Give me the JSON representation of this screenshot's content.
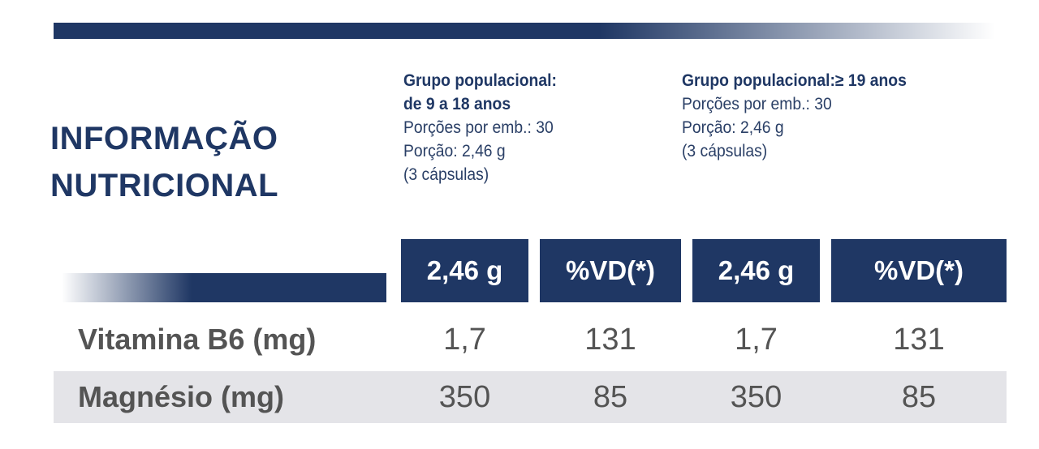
{
  "title": {
    "line1": "INFORMAÇÃO",
    "line2": "NUTRICIONAL"
  },
  "groups": [
    {
      "head_line1": "Grupo populacional:",
      "head_line2": "de 9 a 18 anos",
      "portions": "Porções por emb.: 30",
      "portion": "Porção: 2,46 g",
      "capsules": "(3 cápsulas)"
    },
    {
      "head_line1": "Grupo populacional:≥ 19 anos",
      "portions": "Porções por emb.: 30",
      "portion": "Porção: 2,46 g",
      "capsules": "(3 cápsulas)"
    }
  ],
  "columns": [
    "2,46 g",
    "%VD(*)",
    "2,46 g",
    "%VD(*)"
  ],
  "rows": [
    {
      "label": "Vitamina B6 (mg)",
      "values": [
        "1,7",
        "131",
        "1,7",
        "131"
      ]
    },
    {
      "label": "Magnésio (mg)",
      "values": [
        "350",
        "85",
        "350",
        "85"
      ]
    }
  ],
  "colors": {
    "navy": "#1f3764",
    "text_gray": "#545454",
    "row_shade": "#e4e4e8"
  }
}
